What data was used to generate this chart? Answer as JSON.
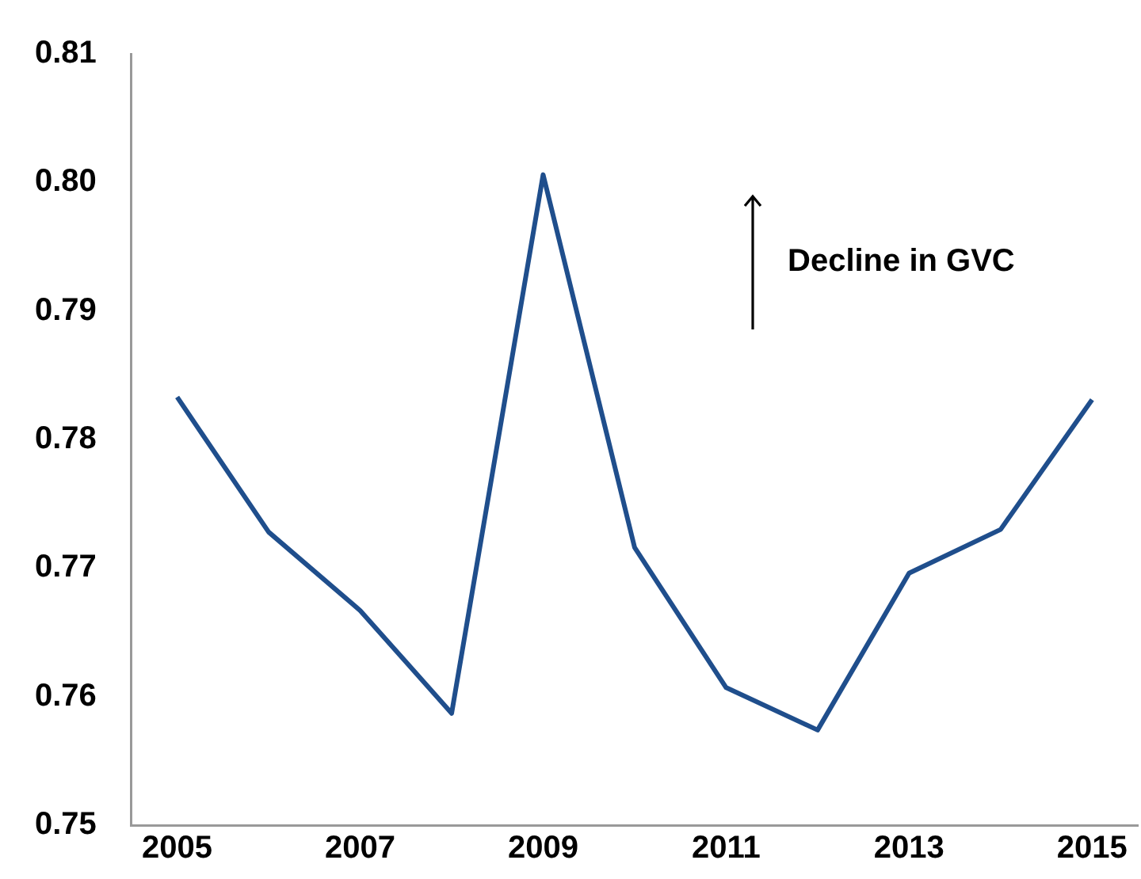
{
  "chart_data": {
    "type": "line",
    "x": [
      2005,
      2006,
      2007,
      2008,
      2009,
      2010,
      2011,
      2012,
      2013,
      2014,
      2015
    ],
    "series": [
      {
        "color": "#1f4e8c",
        "values": [
          0.7833,
          0.7728,
          0.7667,
          0.7587,
          0.8006,
          0.7716,
          0.7607,
          0.7574,
          0.7696,
          0.773,
          0.7831
        ]
      }
    ],
    "xlim": [
      2004.5,
      2015.5
    ],
    "xticks": [
      2005,
      2007,
      2009,
      2011,
      2013,
      2015
    ],
    "ylim": [
      0.75,
      0.81
    ],
    "yticks": [
      {
        "value": 0.75,
        "label": "0.75"
      },
      {
        "value": 0.76,
        "label": "0.76"
      },
      {
        "value": 0.77,
        "label": "0.77"
      },
      {
        "value": 0.78,
        "label": "0.78"
      },
      {
        "value": 0.79,
        "label": "0.79"
      },
      {
        "value": 0.8,
        "label": "0.80"
      },
      {
        "value": 0.81,
        "label": "0.81"
      }
    ],
    "annotations": [
      "Decline in GVC"
    ],
    "grid": false,
    "legend": false,
    "marker": "none",
    "line_style": "solid"
  }
}
